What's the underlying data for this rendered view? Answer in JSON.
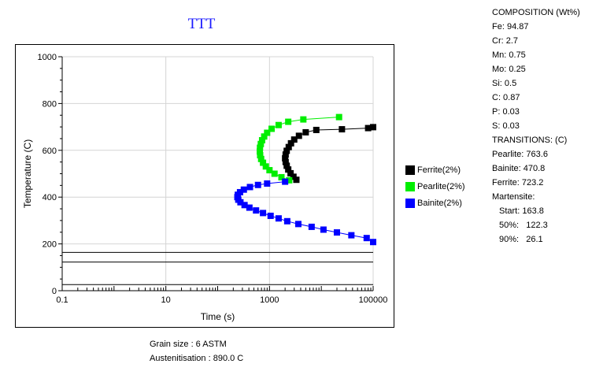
{
  "chart_data": {
    "type": "scatter",
    "title": "TTT",
    "xlabel": "Time (s)",
    "ylabel": "Temperature (C)",
    "x_scale": "log",
    "xlim": [
      0.1,
      100000
    ],
    "ylim": [
      0,
      1000
    ],
    "x_ticks": [
      "0.1",
      "10",
      "1000",
      "100000"
    ],
    "y_ticks": [
      "0",
      "200",
      "400",
      "600",
      "800",
      "1000"
    ],
    "grid": true,
    "legend_position": "right",
    "series": [
      {
        "name": "Ferrite(2%)",
        "color": "#000000",
        "points": [
          [
            3300,
            474
          ],
          [
            2900,
            487
          ],
          [
            2550,
            502
          ],
          [
            2300,
            518
          ],
          [
            2150,
            534
          ],
          [
            2050,
            550
          ],
          [
            2000,
            566
          ],
          [
            2050,
            582
          ],
          [
            2150,
            598
          ],
          [
            2350,
            614
          ],
          [
            2600,
            630
          ],
          [
            3000,
            646
          ],
          [
            3700,
            662
          ],
          [
            5000,
            677
          ],
          [
            8000,
            687
          ],
          [
            25000,
            690
          ],
          [
            80000,
            695
          ],
          [
            100000,
            699
          ]
        ]
      },
      {
        "name": "Pearlite(2%)",
        "color": "#00ee00",
        "points": [
          [
            2400,
            472
          ],
          [
            1700,
            485
          ],
          [
            1250,
            500
          ],
          [
            1000,
            515
          ],
          [
            850,
            531
          ],
          [
            750,
            547
          ],
          [
            690,
            563
          ],
          [
            660,
            579
          ],
          [
            650,
            595
          ],
          [
            655,
            611
          ],
          [
            680,
            627
          ],
          [
            720,
            643
          ],
          [
            790,
            659
          ],
          [
            900,
            675
          ],
          [
            1100,
            692
          ],
          [
            1500,
            708
          ],
          [
            2300,
            722
          ],
          [
            4500,
            732
          ],
          [
            22000,
            742
          ]
        ]
      },
      {
        "name": "Bainite(2%)",
        "color": "#0000ff",
        "points": [
          [
            2000,
            466
          ],
          [
            900,
            458
          ],
          [
            600,
            452
          ],
          [
            420,
            443
          ],
          [
            320,
            432
          ],
          [
            270,
            421
          ],
          [
            245,
            410
          ],
          [
            240,
            400
          ],
          [
            250,
            389
          ],
          [
            275,
            378
          ],
          [
            330,
            366
          ],
          [
            410,
            355
          ],
          [
            550,
            343
          ],
          [
            750,
            332
          ],
          [
            1050,
            320
          ],
          [
            1500,
            309
          ],
          [
            2200,
            297
          ],
          [
            3600,
            285
          ],
          [
            6500,
            273
          ],
          [
            11000,
            261
          ],
          [
            20000,
            249
          ],
          [
            38000,
            237
          ],
          [
            75000,
            225
          ],
          [
            100000,
            208
          ]
        ]
      }
    ],
    "horizontal_lines": [
      {
        "label": "Martensite Start",
        "y": 163.8
      },
      {
        "label": "Martensite 50%",
        "y": 122.3
      },
      {
        "label": "Martensite 90%",
        "y": 26.1
      }
    ]
  },
  "info": {
    "composition_title": "COMPOSITION (Wt%)",
    "fe": "Fe: 94.87",
    "cr": "Cr: 2.7",
    "mn": "Mn: 0.75",
    "mo": "Mo: 0.25",
    "si": "Si: 0.5",
    "c": "C: 0.87",
    "p": "P: 0.03",
    "s": "S: 0.03",
    "transitions_title": "TRANSITIONS: (C)",
    "pearlite": "Pearlite: 763.6",
    "bainite": "Bainite: 470.8",
    "ferrite": "Ferrite: 723.2",
    "martensite_title": "Martensite:",
    "ms_start": "Start: 163.8",
    "ms_50": "50%:   122.3",
    "ms_90": "90%:   26.1"
  },
  "footer": {
    "grain_size": "Grain size : 6 ASTM",
    "austenitisation": "Austenitisation : 890.0 C"
  }
}
